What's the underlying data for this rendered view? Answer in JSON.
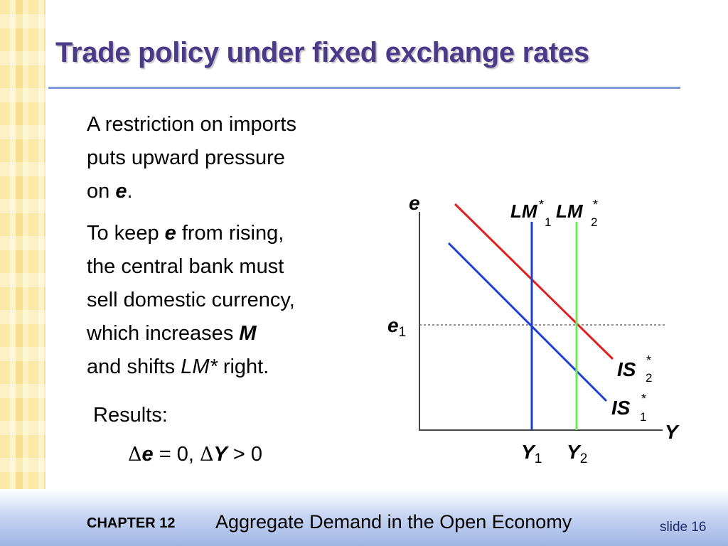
{
  "title": "Trade policy under fixed exchange rates",
  "paragraph1": {
    "line1": "A restriction on imports",
    "line2": "puts upward pressure",
    "line3_pre": "on ",
    "line3_var": "e",
    "line3_post": "."
  },
  "paragraph2": {
    "line1_pre": "To keep ",
    "line1_var": "e",
    "line1_post": " from rising,",
    "line2": "the central bank must",
    "line3": "sell domestic currency,",
    "line4_pre": "which increases ",
    "line4_var": "M",
    "line5_pre": "and shifts ",
    "line5_var": "LM*",
    "line5_post": " right."
  },
  "results": {
    "label": "Results:",
    "delta_symbol": "Δ",
    "var1": "e",
    "rel1": " = 0,  ",
    "var2": "Y",
    "rel2": "  > 0"
  },
  "diagram": {
    "y_axis_label": "e",
    "x_axis_label": "Y",
    "e1": {
      "main": "e",
      "sub": "1"
    },
    "Y1": {
      "main": "Y",
      "sub": "1"
    },
    "Y2": {
      "main": "Y",
      "sub": "2"
    },
    "LM1": {
      "main": "LM",
      "sup": "*",
      "sub": "1"
    },
    "LM2": {
      "main": "LM",
      "sup": "*",
      "sub": "2"
    },
    "IS1": {
      "main": "IS",
      "sup": "*",
      "sub": "1"
    },
    "IS2": {
      "main": "IS",
      "sup": "*",
      "sub": "2"
    },
    "colors": {
      "LM1": "#1f3fbf",
      "LM2": "#6ee85a",
      "IS1": "#1f3fd6",
      "IS2": "#e02020",
      "axes": "#444444",
      "guide": "#555555"
    }
  },
  "footer": {
    "chapter": "CHAPTER 12",
    "title": "Aggregate Demand in the Open Economy",
    "slide": "slide 16"
  }
}
